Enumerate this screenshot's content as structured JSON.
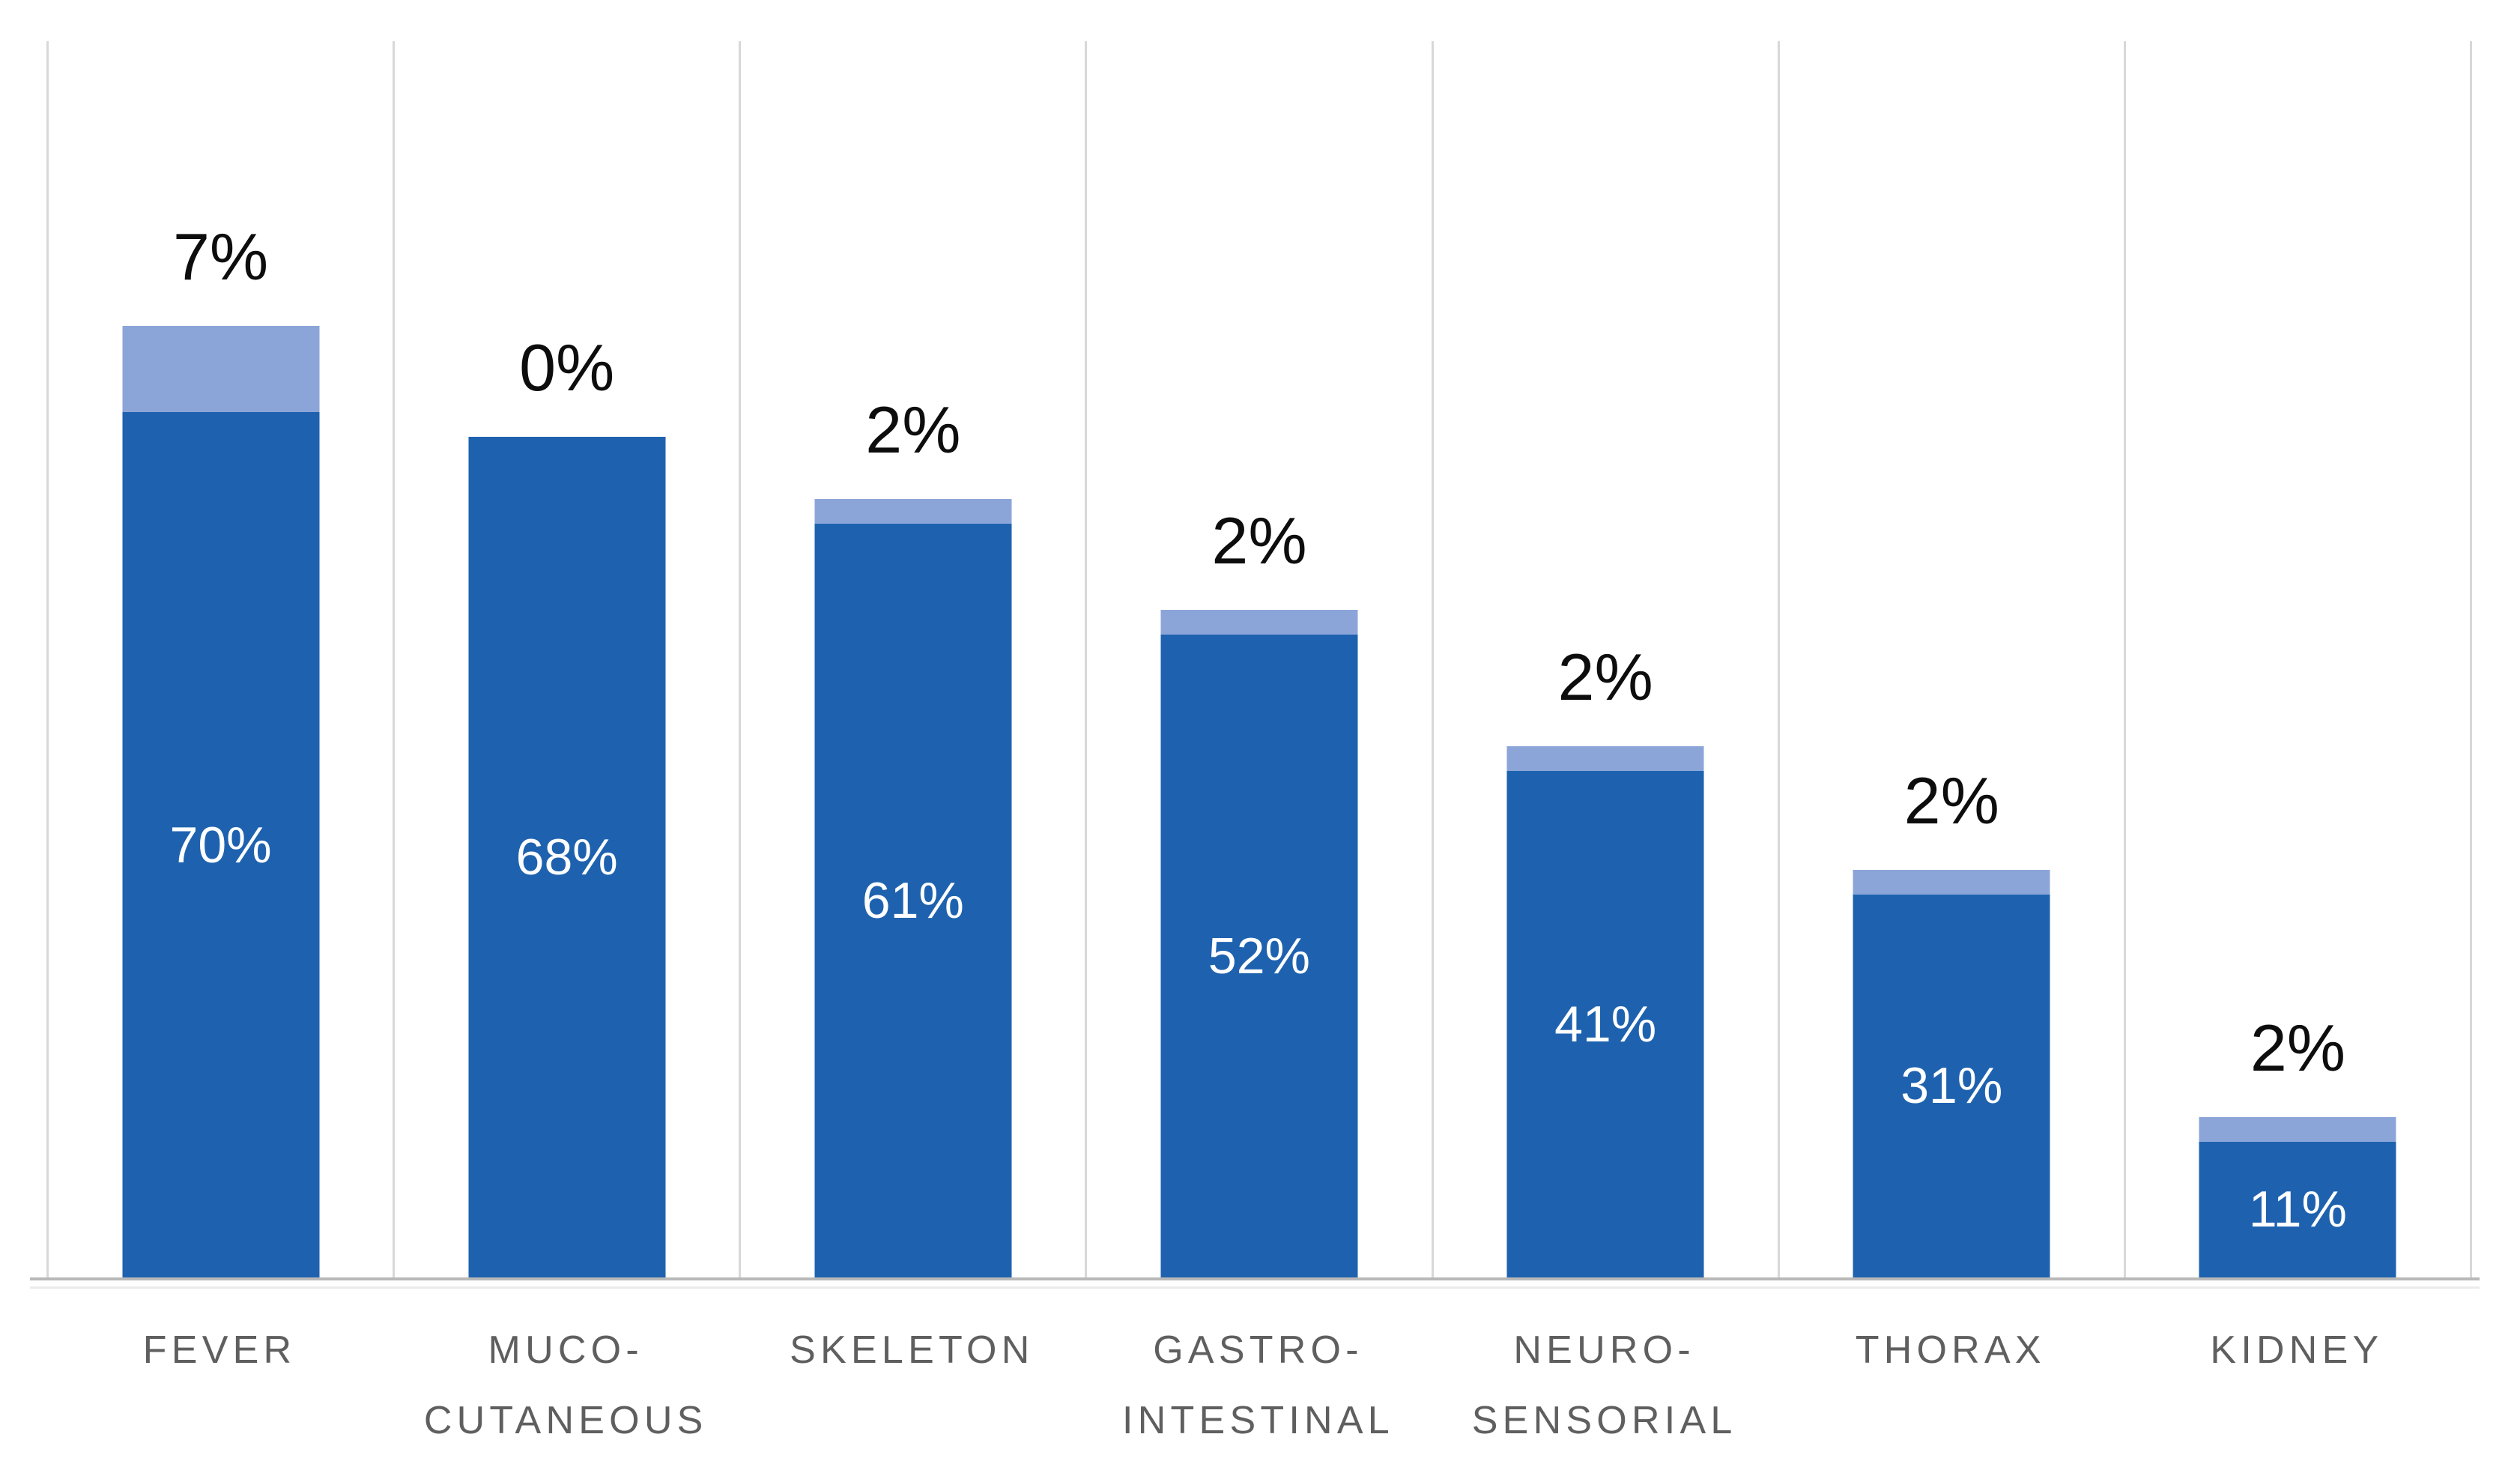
{
  "chart_data": {
    "type": "bar",
    "stacked": true,
    "title": "",
    "categories": [
      "FEVER",
      "MUCO-CUTANEOUS",
      "SKELETON",
      "GASTRO-INTESTINAL",
      "NEURO-SENSORIAL",
      "THORAX",
      "KIDNEY"
    ],
    "category_label_lines": [
      [
        "FEVER"
      ],
      [
        "MUCO-",
        "CUTANEOUS"
      ],
      [
        "SKELETON"
      ],
      [
        "GASTRO-",
        "INTESTINAL"
      ],
      [
        "NEURO-",
        "SENSORIAL"
      ],
      [
        "THORAX"
      ],
      [
        "KIDNEY"
      ]
    ],
    "series": [
      {
        "name": "dark-blue-segment",
        "color": "#1E62AF",
        "values": [
          70,
          68,
          61,
          52,
          41,
          31,
          11
        ],
        "labels": [
          "70%",
          "68%",
          "61%",
          "52%",
          "41%",
          "31%",
          "11%"
        ],
        "label_position": "inside-center",
        "label_color": "#FFFFFF"
      },
      {
        "name": "light-blue-segment",
        "color": "#8CA5D9",
        "values": [
          7,
          0,
          2,
          2,
          2,
          2,
          2
        ],
        "labels": [
          "7%",
          "0%",
          "2%",
          "2%",
          "2%",
          "2%",
          "2%"
        ],
        "label_position": "above-bar",
        "label_color": "#0D0D0D"
      }
    ],
    "ylim": [
      0,
      100
    ],
    "xlabel": "",
    "ylabel": "",
    "y_axis_labels_visible": false,
    "legend": "none",
    "gridlines": "vertical-category-separators",
    "gridline_color": "#D8D8D8",
    "axis_line_color": "#B9B9B9",
    "category_label_color": "#5F5F5F",
    "background_color": "#FFFFFF"
  }
}
